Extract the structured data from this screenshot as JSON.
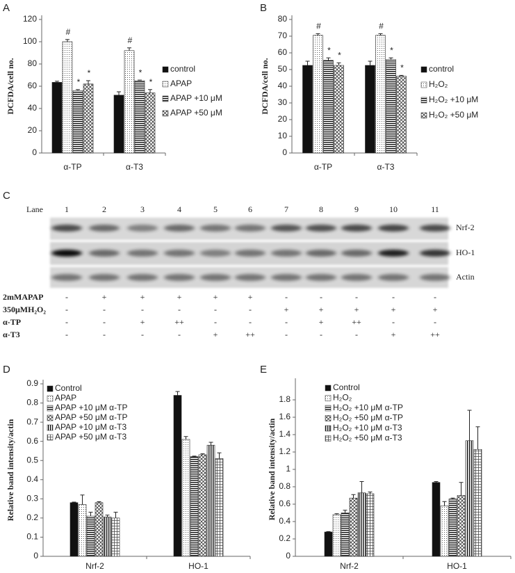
{
  "chart_data": [
    {
      "type": "bar",
      "panel": "A",
      "y_label": "DCFDA/cell no.",
      "categories": [
        "α-TP",
        "α-T3"
      ],
      "ylim": [
        0,
        120
      ],
      "yticks": [
        0,
        20,
        40,
        60,
        80,
        100,
        120
      ],
      "series": [
        {
          "name": "control",
          "color": "#111111",
          "pattern": "solid",
          "values": [
            63.5,
            52
          ],
          "errors": [
            1,
            3
          ]
        },
        {
          "name": "APAP",
          "color": "#000000",
          "pattern": "dots",
          "values": [
            100,
            92
          ],
          "errors": [
            2,
            2.5
          ],
          "annotations": [
            "#",
            "#"
          ]
        },
        {
          "name": "APAP +10 μM",
          "color": "#000000",
          "pattern": "hlines",
          "values": [
            56,
            65
          ],
          "errors": [
            1,
            0.5
          ],
          "annotations": [
            "*",
            "*"
          ]
        },
        {
          "name": "APAP +50 μM",
          "color": "#000000",
          "pattern": "cross",
          "values": [
            62,
            54
          ],
          "errors": [
            3,
            3
          ],
          "annotations": [
            "*",
            "*"
          ]
        }
      ]
    },
    {
      "type": "bar",
      "panel": "B",
      "y_label": "DCFDA/cell no.",
      "categories": [
        "α-TP",
        "α-T3"
      ],
      "ylim": [
        0,
        80
      ],
      "yticks": [
        0,
        10,
        20,
        30,
        40,
        50,
        60,
        70,
        80
      ],
      "series": [
        {
          "name": "control",
          "color": "#111111",
          "pattern": "solid",
          "values": [
            52.5,
            52.5
          ],
          "errors": [
            2.5,
            2.5
          ]
        },
        {
          "name": "H₂O₂",
          "color": "#000000",
          "pattern": "dots",
          "values": [
            70.5,
            70.5
          ],
          "errors": [
            1,
            1
          ],
          "annotations": [
            "#",
            "#"
          ]
        },
        {
          "name": "H₂O₂ +10 μM",
          "color": "#000000",
          "pattern": "hlines",
          "values": [
            55.5,
            56
          ],
          "errors": [
            1.5,
            1
          ],
          "annotations": [
            "*",
            "*"
          ]
        },
        {
          "name": "H₂O₂ +50 μM",
          "color": "#000000",
          "pattern": "cross",
          "values": [
            52.5,
            46
          ],
          "errors": [
            1.5,
            0.5
          ],
          "annotations": [
            "*",
            "*"
          ]
        }
      ]
    },
    {
      "type": "bar",
      "panel": "D",
      "y_label": "Relative band intensity/actin",
      "categories": [
        "Nrf-2",
        "HO-1"
      ],
      "ylim": [
        0,
        0.9
      ],
      "yticks": [
        0,
        0.1,
        0.2,
        0.3,
        0.4,
        0.5,
        0.6,
        0.7,
        0.8,
        0.9
      ],
      "series": [
        {
          "name": "Control",
          "color": "#111111",
          "pattern": "solid",
          "values": [
            0.28,
            0.84
          ],
          "errors": [
            0.003,
            0.02
          ]
        },
        {
          "name": "APAP",
          "color": "#000000",
          "pattern": "dots",
          "values": [
            0.27,
            0.61
          ],
          "errors": [
            0.05,
            0.015
          ]
        },
        {
          "name": "APAP +10 μM α-TP",
          "color": "#000000",
          "pattern": "hlines",
          "values": [
            0.21,
            0.52
          ],
          "errors": [
            0.02,
            0.003
          ]
        },
        {
          "name": "APAP +50 μM α-TP",
          "color": "#000000",
          "pattern": "cross",
          "values": [
            0.28,
            0.53
          ],
          "errors": [
            0.005,
            0.005
          ]
        },
        {
          "name": "APAP +10 μM α-T3",
          "color": "#000000",
          "pattern": "vlines",
          "values": [
            0.205,
            0.58
          ],
          "errors": [
            0.01,
            0.015
          ]
        },
        {
          "name": "APAP +50 μM α-T3",
          "color": "#000000",
          "pattern": "grid",
          "values": [
            0.2,
            0.51
          ],
          "errors": [
            0.03,
            0.03
          ]
        }
      ]
    },
    {
      "type": "bar",
      "panel": "E",
      "y_label": "Relative band intensity/actin",
      "categories": [
        "Nrf-2",
        "HO-1"
      ],
      "ylim": [
        0,
        2
      ],
      "yticks": [
        0,
        0.2,
        0.4,
        0.6,
        0.8,
        1,
        1.2,
        1.4,
        1.6,
        1.8
      ],
      "series": [
        {
          "name": "Control",
          "color": "#111111",
          "pattern": "solid",
          "values": [
            0.28,
            0.85
          ],
          "errors": [
            0.005,
            0.01
          ]
        },
        {
          "name": "H₂O₂",
          "color": "#000000",
          "pattern": "dots",
          "values": [
            0.48,
            0.58
          ],
          "errors": [
            0.01,
            0.05
          ]
        },
        {
          "name": "H₂O₂ +10 μM α-TP",
          "color": "#000000",
          "pattern": "hlines",
          "values": [
            0.5,
            0.66
          ],
          "errors": [
            0.03,
            0.01
          ]
        },
        {
          "name": "H₂O₂ +50 μM α-TP",
          "color": "#000000",
          "pattern": "cross",
          "values": [
            0.67,
            0.7
          ],
          "errors": [
            0.04,
            0.15
          ]
        },
        {
          "name": "H₂O₂ +10 μM α-T3",
          "color": "#000000",
          "pattern": "vlines",
          "values": [
            0.73,
            1.33
          ],
          "errors": [
            0.13,
            0.35
          ]
        },
        {
          "name": "H₂O₂ +50 μM α-T3",
          "color": "#000000",
          "pattern": "grid",
          "values": [
            0.72,
            1.23
          ],
          "errors": [
            0.02,
            0.26
          ]
        }
      ]
    }
  ],
  "blot": {
    "panel": "C",
    "lane_label": "Lane",
    "lanes": [
      "1",
      "2",
      "3",
      "4",
      "5",
      "6",
      "7",
      "8",
      "9",
      "10",
      "11"
    ],
    "bands": [
      "Nrf-2",
      "HO-1",
      "Actin"
    ],
    "treatments": [
      {
        "label": "2mMAPAP",
        "values": [
          "-",
          "+",
          "+",
          "+",
          "+",
          "+",
          "-",
          "-",
          "-",
          "-",
          "-"
        ]
      },
      {
        "label": "350μMH₂O₂",
        "values": [
          "-",
          "-",
          "-",
          "-",
          "-",
          "-",
          "+",
          "+",
          "+",
          "+",
          "+"
        ]
      },
      {
        "label": "α-TP",
        "values": [
          "-",
          "-",
          "+",
          "++",
          "-",
          "-",
          "-",
          "+",
          "++",
          "-",
          "-"
        ]
      },
      {
        "label": "α-T3",
        "values": [
          "-",
          "-",
          "-",
          "-",
          "+",
          "++",
          "-",
          "-",
          "-",
          "+",
          "++"
        ]
      }
    ]
  }
}
